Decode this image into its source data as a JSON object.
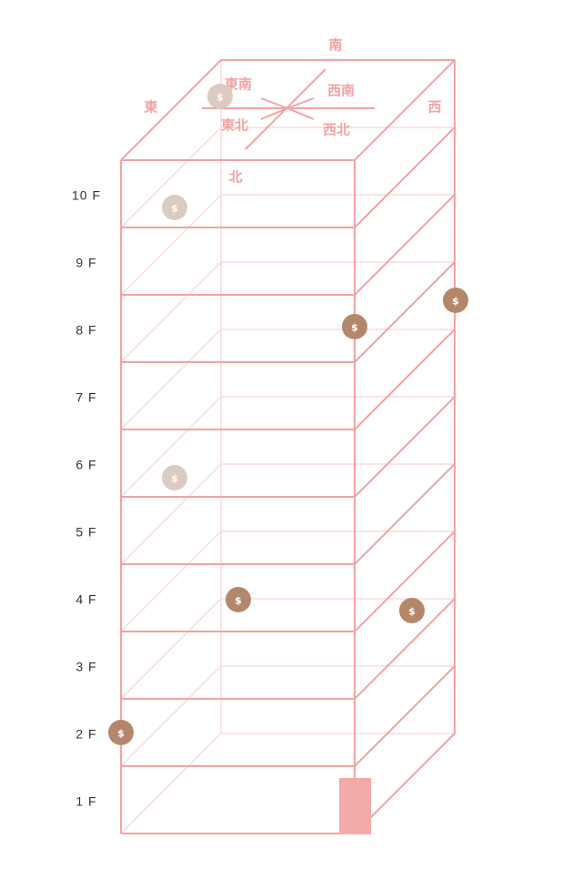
{
  "directions": {
    "south": "南",
    "east": "東",
    "west": "西",
    "north": "北",
    "southeast": "東南",
    "southwest": "西南",
    "northeast": "東北",
    "northwest": "西北"
  },
  "floors": [
    "10 F",
    "9 F",
    "8 F",
    "7 F",
    "6 F",
    "5 F",
    "4 F",
    "3 F",
    "2 F",
    "1 F"
  ],
  "coin_symbol": "$",
  "coins": [
    {
      "floor": "roof",
      "shade": "light"
    },
    {
      "floor": "10 F",
      "shade": "light"
    },
    {
      "floor": "8 F",
      "shade": "dark"
    },
    {
      "floor": "8 F",
      "shade": "dark"
    },
    {
      "floor": "6 F",
      "shade": "light"
    },
    {
      "floor": "4 F",
      "shade": "dark"
    },
    {
      "floor": "4 F",
      "shade": "dark"
    },
    {
      "floor": "2 F",
      "shade": "dark"
    }
  ],
  "colors": {
    "line": "#f2a3a3",
    "line_light": "#fbdcdc",
    "door": "#f4aaa9",
    "coin_dark": "#b5876a",
    "coin_light": "#dccbc0"
  }
}
